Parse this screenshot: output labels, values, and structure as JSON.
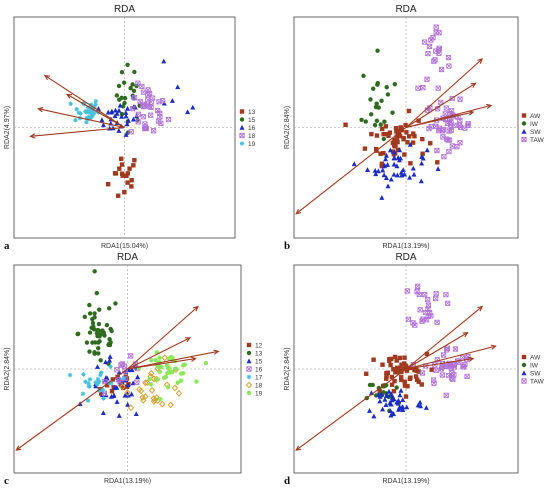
{
  "chart_data": [
    {
      "id": "a",
      "letter": "a",
      "type": "scatter",
      "title": "RDA",
      "xlabel": "RDA1(15.04%)",
      "ylabel": "RDA2(4.97%)",
      "xlim": [
        -1,
        1
      ],
      "ylim": [
        -1,
        1
      ],
      "grid": false,
      "legend": "right",
      "origin": [
        0,
        0
      ],
      "series": [
        {
          "name": "13",
          "marker": "square",
          "color": "#a0391e",
          "clusters": [
            [
              0.0,
              -0.45,
              0.12,
              0.2,
              18
            ]
          ]
        },
        {
          "name": "15",
          "marker": "circle",
          "color": "#2e6b1f",
          "clusters": [
            [
              0.05,
              0.3,
              0.1,
              0.22,
              22
            ]
          ]
        },
        {
          "name": "16",
          "marker": "triangle",
          "color": "#1c2dc4",
          "clusters": [
            [
              -0.05,
              0.08,
              0.15,
              0.12,
              30
            ],
            [
              0.45,
              0.3,
              0.25,
              0.2,
              6
            ]
          ]
        },
        {
          "name": "18",
          "marker": "xsquare",
          "color": "#b070d6",
          "clusters": [
            [
              0.22,
              0.14,
              0.14,
              0.2,
              36
            ]
          ]
        },
        {
          "name": "19",
          "marker": "star",
          "color": "#45c0dd",
          "clusters": [
            [
              -0.35,
              0.15,
              0.1,
              0.1,
              32
            ]
          ]
        }
      ],
      "vectors": [
        [
          -0.72,
          0.47
        ],
        [
          -0.78,
          0.17
        ],
        [
          -0.52,
          0.3
        ],
        [
          -0.85,
          -0.08
        ]
      ]
    },
    {
      "id": "b",
      "letter": "b",
      "type": "scatter",
      "title": "RDA",
      "xlabel": "RDA1(13.19%)",
      "ylabel": "RDA2(2.84%)",
      "xlim": [
        -1,
        1
      ],
      "ylim": [
        -1,
        1
      ],
      "grid": false,
      "legend": "right",
      "origin": [
        0,
        0
      ],
      "series": [
        {
          "name": "AW",
          "marker": "square",
          "color": "#a0391e",
          "clusters": [
            [
              -0.08,
              -0.1,
              0.22,
              0.18,
              55
            ]
          ]
        },
        {
          "name": "IW",
          "marker": "circle",
          "color": "#2e6b1f",
          "clusters": [
            [
              -0.25,
              0.22,
              0.12,
              0.35,
              22
            ]
          ]
        },
        {
          "name": "SW",
          "marker": "triangle",
          "color": "#1c2dc4",
          "clusters": [
            [
              -0.08,
              -0.35,
              0.22,
              0.14,
              42
            ]
          ]
        },
        {
          "name": "TAW",
          "marker": "xsquare",
          "color": "#b070d6",
          "clusters": [
            [
              0.38,
              0.02,
              0.18,
              0.18,
              45
            ],
            [
              0.25,
              0.6,
              0.12,
              0.22,
              22
            ]
          ]
        }
      ],
      "vectors": [
        [
          0.68,
          0.62
        ],
        [
          0.62,
          0.4
        ],
        [
          0.76,
          0.2
        ],
        [
          0.6,
          0.14
        ],
        [
          -0.98,
          -0.78
        ]
      ]
    },
    {
      "id": "c",
      "letter": "c",
      "type": "scatter",
      "title": "RDA",
      "xlabel": "RDA1(13.19%)",
      "ylabel": "RDA2(2.84%)",
      "xlim": [
        -1,
        1
      ],
      "ylim": [
        -1,
        1
      ],
      "grid": false,
      "legend": "right",
      "origin": [
        0,
        0
      ],
      "series": [
        {
          "name": "12",
          "marker": "square",
          "color": "#a0391e",
          "clusters": [
            [
              -0.1,
              -0.15,
              0.15,
              0.12,
              14
            ]
          ]
        },
        {
          "name": "13",
          "marker": "circle",
          "color": "#2e6b1f",
          "clusters": [
            [
              -0.25,
              0.35,
              0.15,
              0.3,
              48
            ]
          ]
        },
        {
          "name": "15",
          "marker": "triangle",
          "color": "#1c2dc4",
          "clusters": [
            [
              -0.1,
              -0.2,
              0.2,
              0.25,
              40
            ]
          ]
        },
        {
          "name": "16",
          "marker": "xsquare",
          "color": "#b070d6",
          "clusters": [
            [
              0.0,
              -0.05,
              0.15,
              0.12,
              14
            ]
          ]
        },
        {
          "name": "17",
          "marker": "star",
          "color": "#45c0dd",
          "clusters": [
            [
              -0.25,
              -0.15,
              0.15,
              0.15,
              24
            ]
          ]
        },
        {
          "name": "18",
          "marker": "diamond",
          "color": "#d4a032",
          "clusters": [
            [
              0.25,
              -0.15,
              0.22,
              0.18,
              28
            ]
          ]
        },
        {
          "name": "19",
          "marker": "circle",
          "color": "#8ae85a",
          "clusters": [
            [
              0.35,
              0.0,
              0.18,
              0.12,
              42
            ]
          ]
        }
      ],
      "vectors": [
        [
          0.62,
          0.6
        ],
        [
          0.55,
          0.3
        ],
        [
          0.8,
          0.17
        ],
        [
          0.6,
          0.1
        ],
        [
          -0.98,
          -0.78
        ]
      ]
    },
    {
      "id": "d",
      "letter": "d",
      "type": "scatter",
      "title": "RDA",
      "xlabel": "RDA1(13.19%)",
      "ylabel": "RDA2(2.84%)",
      "xlim": [
        -1,
        1
      ],
      "ylim": [
        -1,
        1
      ],
      "grid": false,
      "legend": "right",
      "origin": [
        0,
        0
      ],
      "series": [
        {
          "name": "AW",
          "marker": "square",
          "color": "#a0391e",
          "clusters": [
            [
              -0.08,
              -0.05,
              0.22,
              0.16,
              55
            ]
          ]
        },
        {
          "name": "IW",
          "marker": "circle",
          "color": "#2e6b1f",
          "clusters": [
            [
              -0.2,
              -0.25,
              0.12,
              0.14,
              16
            ]
          ]
        },
        {
          "name": "SW",
          "marker": "triangle",
          "color": "#1c2dc4",
          "clusters": [
            [
              -0.1,
              -0.32,
              0.22,
              0.14,
              44
            ]
          ]
        },
        {
          "name": "TAW",
          "marker": "xsquare",
          "color": "#b070d6",
          "clusters": [
            [
              0.38,
              0.02,
              0.18,
              0.16,
              40
            ],
            [
              0.2,
              0.62,
              0.12,
              0.2,
              24
            ]
          ]
        }
      ],
      "vectors": [
        [
          0.68,
          0.6
        ],
        [
          0.55,
          0.35
        ],
        [
          0.8,
          0.22
        ],
        [
          0.6,
          0.1
        ],
        [
          -0.98,
          -0.78
        ]
      ]
    }
  ]
}
